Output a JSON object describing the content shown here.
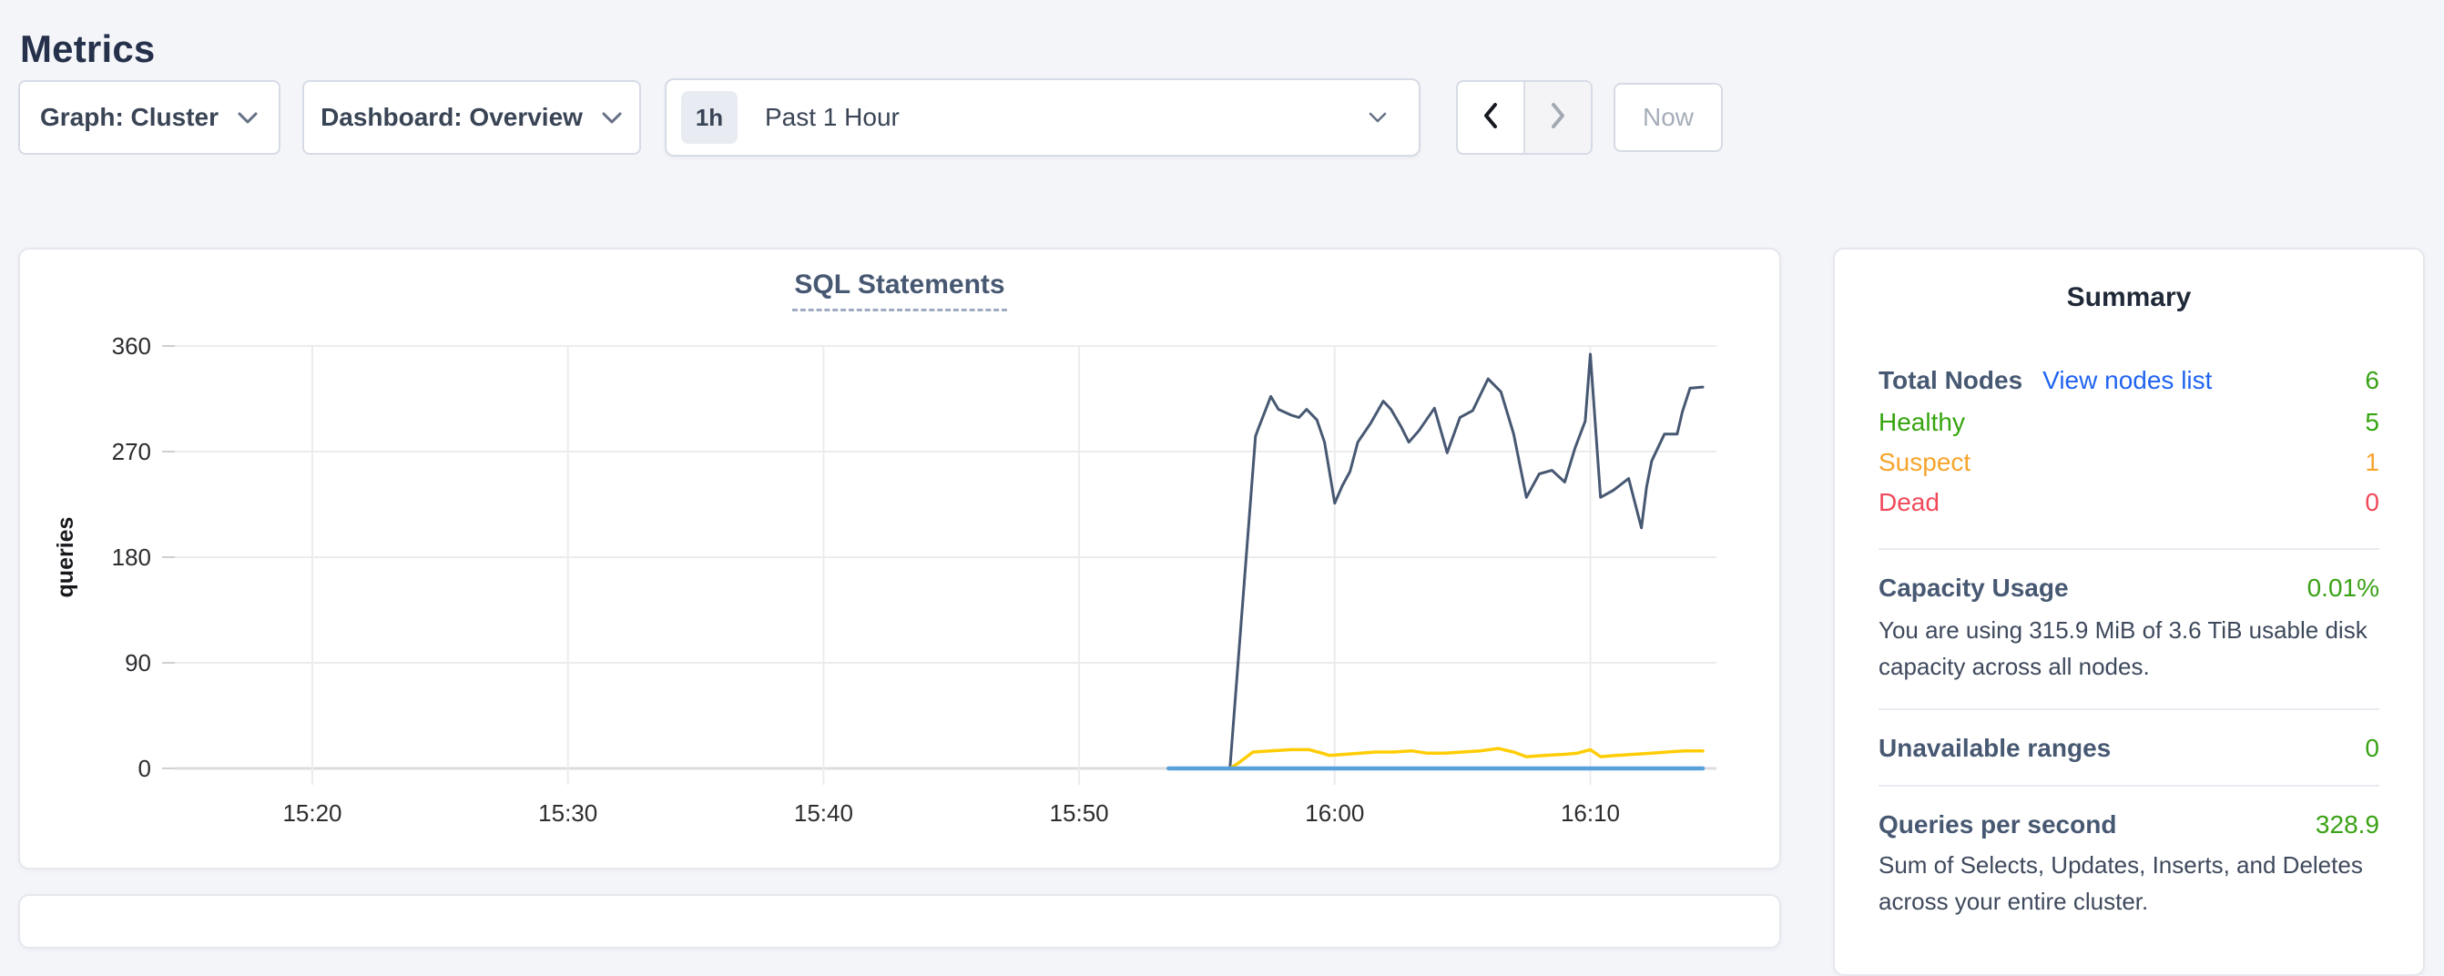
{
  "page": {
    "title": "Metrics"
  },
  "toolbar": {
    "graph_label": "Graph: Cluster",
    "dashboard_label": "Dashboard: Overview",
    "time_badge": "1h",
    "time_label": "Past 1 Hour",
    "now_label": "Now"
  },
  "summary": {
    "title": "Summary",
    "value_color": "#3aa216",
    "link_color": "#2064f0",
    "total_nodes": {
      "label": "Total Nodes",
      "link": "View nodes list",
      "value": "6"
    },
    "statuses": [
      {
        "label": "Healthy",
        "value": "5",
        "color": "#36a40e"
      },
      {
        "label": "Suspect",
        "value": "1",
        "color": "#f7a42d"
      },
      {
        "label": "Dead",
        "value": "0",
        "color": "#f1495a"
      }
    ],
    "capacity": {
      "label": "Capacity Usage",
      "value": "0.01%",
      "desc": "You are using 315.9 MiB of 3.6 TiB usable disk capacity across all nodes."
    },
    "unavailable": {
      "label": "Unavailable ranges",
      "value": "0"
    },
    "qps": {
      "label": "Queries per second",
      "value": "328.9",
      "desc": "Sum of Selects, Updates, Inserts, and Deletes across your entire cluster."
    }
  },
  "chart_data": {
    "type": "line",
    "title": "SQL Statements",
    "xlabel": "",
    "ylabel": "queries",
    "ylim": [
      0,
      360
    ],
    "y_ticks": [
      0,
      90,
      180,
      270,
      360
    ],
    "x_ticks": [
      "15:20",
      "15:30",
      "15:40",
      "15:50",
      "16:00",
      "16:10"
    ],
    "x_tick_minutes": [
      0,
      10,
      20,
      30,
      40,
      50
    ],
    "grid": true,
    "legend": "none",
    "grid_color": "#ececee",
    "axis_color": "#dcdce1",
    "series": [
      {
        "name": "line-1",
        "color": "#475872",
        "width": 3,
        "points": [
          [
            33.5,
            0
          ],
          [
            34.5,
            0
          ],
          [
            35.9,
            0
          ],
          [
            36.9,
            283
          ],
          [
            37.0,
            289
          ],
          [
            37.5,
            317
          ],
          [
            37.8,
            306
          ],
          [
            38.3,
            301
          ],
          [
            38.6,
            299
          ],
          [
            38.9,
            306
          ],
          [
            39.3,
            297
          ],
          [
            39.6,
            278
          ],
          [
            40.0,
            226
          ],
          [
            40.3,
            241
          ],
          [
            40.6,
            253
          ],
          [
            40.9,
            278
          ],
          [
            41.4,
            294
          ],
          [
            41.9,
            313
          ],
          [
            42.2,
            306
          ],
          [
            42.6,
            291
          ],
          [
            42.9,
            278
          ],
          [
            43.3,
            288
          ],
          [
            43.9,
            307
          ],
          [
            44.4,
            269
          ],
          [
            44.9,
            299
          ],
          [
            45.4,
            305
          ],
          [
            46.0,
            332
          ],
          [
            46.5,
            321
          ],
          [
            47.0,
            285
          ],
          [
            47.5,
            231
          ],
          [
            48.0,
            251
          ],
          [
            48.5,
            254
          ],
          [
            49.0,
            244
          ],
          [
            49.4,
            273
          ],
          [
            49.8,
            296
          ],
          [
            50.0,
            353
          ],
          [
            50.4,
            231
          ],
          [
            50.9,
            237
          ],
          [
            51.5,
            247
          ],
          [
            52.0,
            205
          ],
          [
            52.2,
            240
          ],
          [
            52.4,
            262
          ],
          [
            52.9,
            285
          ],
          [
            53.4,
            285
          ],
          [
            53.6,
            304
          ],
          [
            53.9,
            324
          ],
          [
            54.4,
            325
          ]
        ]
      },
      {
        "name": "line-2",
        "color": "#ffcd05",
        "width": 3.5,
        "points": [
          [
            33.5,
            0
          ],
          [
            35.9,
            0
          ],
          [
            36.2,
            4
          ],
          [
            36.8,
            14
          ],
          [
            37.5,
            15
          ],
          [
            38.3,
            16
          ],
          [
            39.0,
            16
          ],
          [
            39.5,
            13
          ],
          [
            39.8,
            11
          ],
          [
            40.4,
            12
          ],
          [
            41.0,
            13
          ],
          [
            41.6,
            14
          ],
          [
            42.3,
            14
          ],
          [
            43.0,
            15
          ],
          [
            43.6,
            13
          ],
          [
            44.3,
            13
          ],
          [
            45.0,
            14
          ],
          [
            45.7,
            15
          ],
          [
            46.4,
            17
          ],
          [
            47.0,
            14
          ],
          [
            47.5,
            10
          ],
          [
            48.2,
            11
          ],
          [
            49.0,
            12
          ],
          [
            49.5,
            13
          ],
          [
            50.0,
            16
          ],
          [
            50.4,
            10
          ],
          [
            51.0,
            11
          ],
          [
            51.7,
            12
          ],
          [
            52.4,
            13
          ],
          [
            53.0,
            14
          ],
          [
            53.7,
            15
          ],
          [
            54.4,
            15
          ]
        ]
      },
      {
        "name": "line-3",
        "color": "#58a0da",
        "width": 4.5,
        "points": [
          [
            33.5,
            0
          ],
          [
            54.4,
            0
          ]
        ]
      }
    ]
  }
}
